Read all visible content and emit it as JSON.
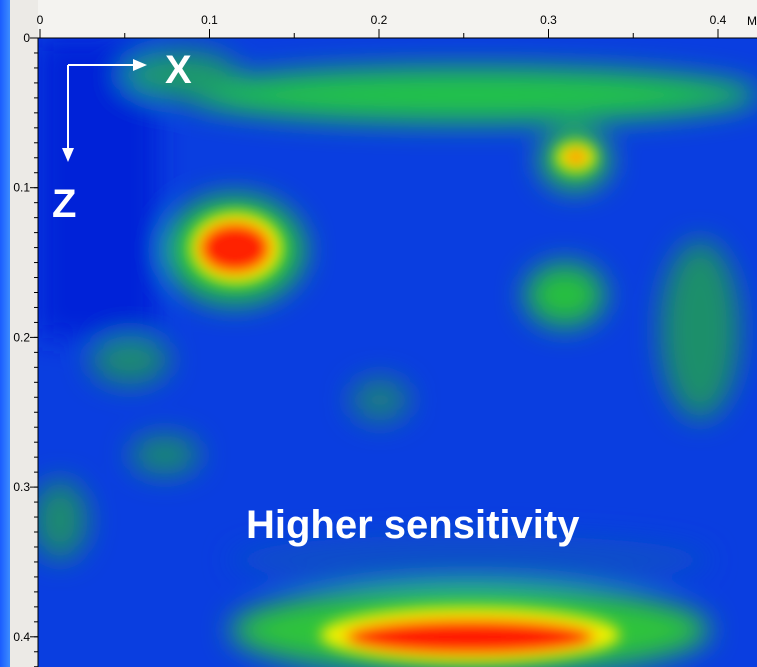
{
  "x_axis": {
    "ticks": [
      0,
      0.1,
      0.2,
      0.3,
      0.4
    ],
    "unit": "M"
  },
  "y_axis": {
    "ticks": [
      0,
      0.1,
      0.2,
      0.3,
      0.4
    ]
  },
  "annotations": {
    "x_arrow": "X",
    "z_arrow": "Z",
    "caption": "Higher sensitivity"
  }
}
